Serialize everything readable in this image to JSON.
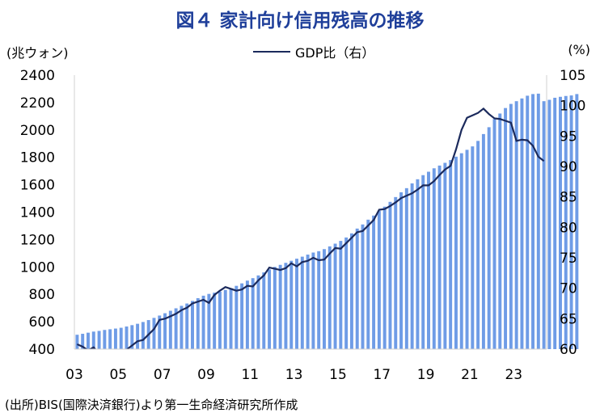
{
  "title": "図４ 家計向け信用残高の推移",
  "source": "(出所)BIS(国際決済銀行)より第一生命経済研究所作成",
  "colors": {
    "bars": "#6f9ce6",
    "line": "#1b2a5c",
    "title": "#1f3f9a"
  },
  "chart_data": {
    "type": "bar",
    "left_axis_unit": "(兆ウォン)",
    "right_axis_unit": "(%)",
    "x_tick_labels": [
      "03",
      "05",
      "07",
      "09",
      "11",
      "13",
      "15",
      "17",
      "19",
      "21",
      "23"
    ],
    "ylim_left": [
      400,
      2400
    ],
    "yticks_left": [
      "400",
      "600",
      "800",
      "1000",
      "1200",
      "1400",
      "1600",
      "1800",
      "2000",
      "2200",
      "2400"
    ],
    "ylim_right": [
      60,
      105
    ],
    "yticks_right": [
      "60",
      "65",
      "70",
      "75",
      "80",
      "85",
      "90",
      "95",
      "100",
      "105"
    ],
    "grid": false,
    "x_start": 2003.0,
    "quarters_per_year": 4,
    "bar_values": [
      505,
      512,
      520,
      528,
      533,
      540,
      545,
      550,
      556,
      565,
      575,
      585,
      598,
      612,
      628,
      645,
      662,
      680,
      698,
      716,
      733,
      752,
      772,
      790,
      803,
      812,
      820,
      832,
      845,
      862,
      880,
      900,
      918,
      938,
      960,
      982,
      1000,
      1015,
      1030,
      1045,
      1060,
      1075,
      1090,
      1105,
      1115,
      1130,
      1150,
      1170,
      1190,
      1215,
      1245,
      1280,
      1310,
      1345,
      1375,
      1410,
      1440,
      1475,
      1510,
      1545,
      1575,
      1610,
      1640,
      1670,
      1695,
      1720,
      1740,
      1760,
      1780,
      1805,
      1830,
      1855,
      1880,
      1920,
      1970,
      2020,
      2080,
      2120,
      2160,
      2190,
      2210,
      2230,
      2250,
      2262,
      2265,
      2210,
      2220,
      2235,
      2242,
      2248,
      2252,
      2262
    ],
    "series": [
      {
        "name": "GDP比（右）",
        "axis": "right",
        "values": [
          60.8,
          60.4,
          59.8,
          60.3,
          59.2,
          58.8,
          58.6,
          58.9,
          59.3,
          59.9,
          60.6,
          61.3,
          61.5,
          62.4,
          63.3,
          64.8,
          65.0,
          65.4,
          65.8,
          66.4,
          66.8,
          67.5,
          67.8,
          68.1,
          67.6,
          68.9,
          69.6,
          70.2,
          69.9,
          69.6,
          69.8,
          70.4,
          70.3,
          71.3,
          72.1,
          73.4,
          73.2,
          73.0,
          73.3,
          74.1,
          73.6,
          74.3,
          74.5,
          75.0,
          74.6,
          74.7,
          75.7,
          76.6,
          76.5,
          77.4,
          78.3,
          79.2,
          79.4,
          80.3,
          81.2,
          82.9,
          83.0,
          83.5,
          84.1,
          84.8,
          85.2,
          85.6,
          86.2,
          86.9,
          86.9,
          87.6,
          88.6,
          89.5,
          90.1,
          92.8,
          96.0,
          98.0,
          98.4,
          98.8,
          99.5,
          98.6,
          97.9,
          97.8,
          97.5,
          97.2,
          94.2,
          94.4,
          94.3,
          93.4,
          91.6,
          90.9
        ]
      }
    ]
  }
}
